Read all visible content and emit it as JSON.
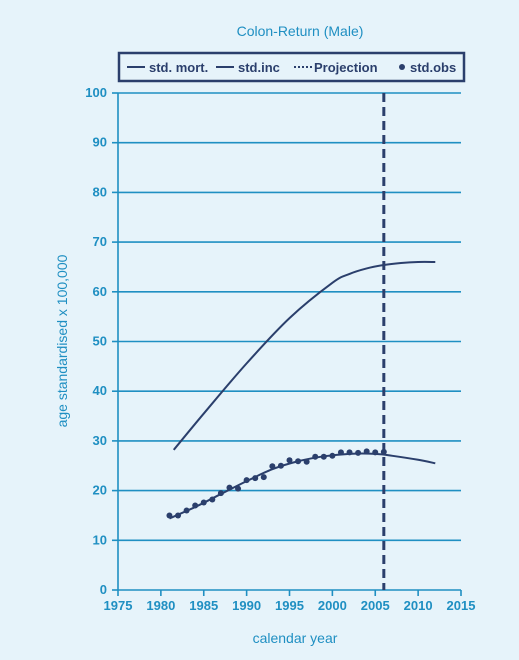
{
  "chart_data": {
    "type": "line",
    "title": "Colon-Return (Male)",
    "xlabel": "calendar year",
    "ylabel": "age standardised x 100,000",
    "xlim": [
      1975,
      2015
    ],
    "ylim": [
      0,
      100
    ],
    "x_ticks": [
      "1975",
      "1980",
      "1985",
      "1990",
      "1995",
      "2000",
      "2005",
      "2010",
      "2015"
    ],
    "y_ticks": [
      "0",
      "10",
      "20",
      "30",
      "40",
      "50",
      "60",
      "70",
      "80",
      "90",
      "100"
    ],
    "grid": "horizontal",
    "legend": {
      "placement": "top",
      "entries": [
        {
          "label": "std. mort.",
          "style": "solid"
        },
        {
          "label": "std.inc",
          "style": "solid"
        },
        {
          "label": "Projection",
          "style": "dotted"
        },
        {
          "label": "std.obs",
          "style": "dot"
        }
      ]
    },
    "projection_year": 2006,
    "series": [
      {
        "name": "std. mort.",
        "x": [
          1981.5,
          1985,
          1990,
          1995,
          2000,
          2002,
          2004,
          2006,
          2008,
          2010,
          2012
        ],
        "y": [
          28.2,
          35.5,
          45.6,
          54.7,
          61.8,
          63.6,
          64.7,
          65.4,
          65.8,
          66.0,
          66.0
        ]
      },
      {
        "name": "std.inc",
        "x": [
          1981,
          1984,
          1987,
          1990,
          1993,
          1996,
          1999,
          2002,
          2005,
          2007,
          2010,
          2012
        ],
        "y": [
          14.4,
          16.7,
          19.3,
          21.9,
          24.3,
          25.9,
          26.9,
          27.4,
          27.4,
          27.0,
          26.2,
          25.5
        ]
      },
      {
        "name": "std.obs",
        "x": [
          1981,
          1982,
          1983,
          1984,
          1985,
          1986,
          1987,
          1988,
          1989,
          1990,
          1991,
          1992,
          1993,
          1994,
          1995,
          1996,
          1997,
          1998,
          1999,
          2000,
          2001,
          2002,
          2003,
          2004,
          2005,
          2006
        ],
        "y": [
          15.0,
          15.0,
          16.0,
          17.0,
          17.6,
          18.2,
          19.5,
          20.6,
          20.4,
          22.1,
          22.5,
          22.7,
          24.9,
          25.0,
          26.1,
          25.9,
          25.8,
          26.8,
          26.8,
          27.0,
          27.7,
          27.7,
          27.6,
          27.9,
          27.7,
          27.8
        ]
      }
    ]
  },
  "colors": {
    "background": "#e6f3fa",
    "axis": "#1f8fc2",
    "data": "#2b3f6c",
    "legend_border": "#2b3f6c"
  }
}
